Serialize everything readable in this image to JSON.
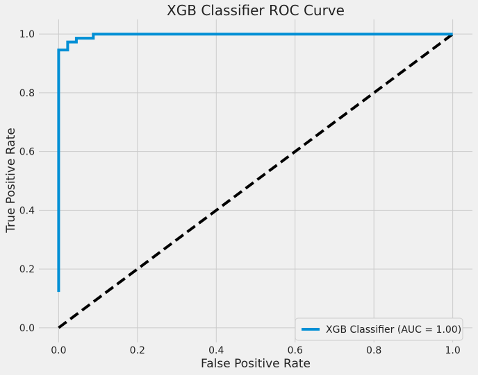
{
  "chart_data": {
    "type": "line",
    "title": "XGB Classifier ROC Curve",
    "xlabel": "False Positive Rate",
    "ylabel": "True Positive Rate",
    "xlim": [
      -0.05,
      1.05
    ],
    "ylim": [
      -0.05,
      1.05
    ],
    "xticks": [
      "0.0",
      "0.2",
      "0.4",
      "0.6",
      "0.8",
      "1.0"
    ],
    "yticks": [
      "0.0",
      "0.2",
      "0.4",
      "0.6",
      "0.8",
      "1.0"
    ],
    "grid": true,
    "legend_position": "bottom-right",
    "series": [
      {
        "name": "XGB Classifier (AUC =  1.00)",
        "color": "#008fd5",
        "style": "solid",
        "x": [
          0.0,
          0.0,
          0.0,
          0.023,
          0.023,
          0.045,
          0.045,
          0.088,
          0.088,
          1.0
        ],
        "y": [
          0.122,
          0.946,
          0.946,
          0.946,
          0.973,
          0.973,
          0.986,
          0.986,
          1.0,
          1.0
        ]
      },
      {
        "color": "#000000",
        "style": "dashed",
        "x": [
          0.0,
          1.0
        ],
        "y": [
          0.0,
          1.0
        ]
      }
    ]
  }
}
